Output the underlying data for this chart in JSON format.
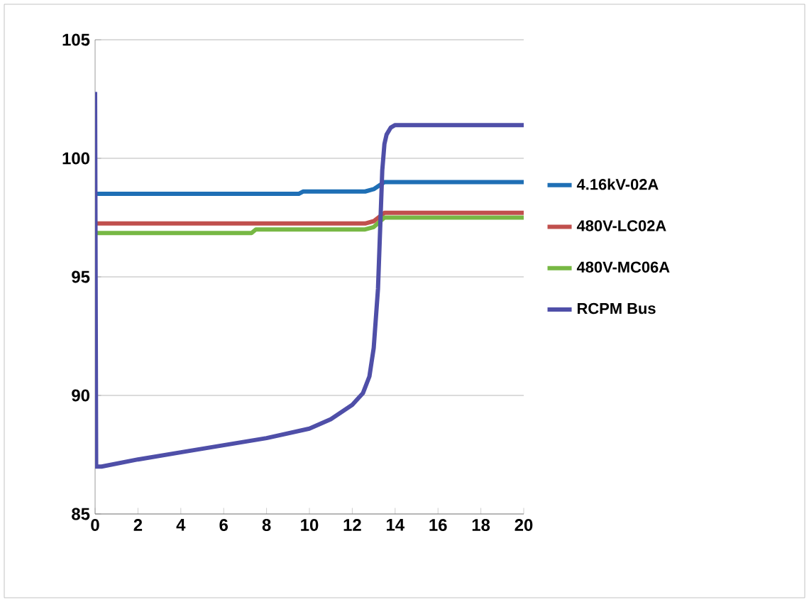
{
  "chart_data": {
    "type": "line",
    "xlim": [
      0,
      20
    ],
    "ylim": [
      85,
      105
    ],
    "xticks": [
      0,
      2,
      4,
      6,
      8,
      10,
      12,
      14,
      16,
      18,
      20
    ],
    "yticks": [
      85,
      90,
      95,
      100,
      105
    ],
    "grid": "y",
    "legend": "right",
    "marker": "none",
    "line_style": "solid",
    "series": [
      {
        "name": "4.16kV-02A",
        "color": "#1f6fb5",
        "x": [
          0,
          9.5,
          9.7,
          12.6,
          13.0,
          13.5,
          20
        ],
        "values": [
          98.5,
          98.5,
          98.6,
          98.6,
          98.7,
          99.0,
          99.0
        ]
      },
      {
        "name": "480V-LC02A",
        "color": "#c0504d",
        "x": [
          0,
          12.6,
          13.0,
          13.5,
          20
        ],
        "values": [
          97.25,
          97.25,
          97.35,
          97.7,
          97.7
        ]
      },
      {
        "name": "480V-MC06A",
        "color": "#77b844",
        "x": [
          0,
          7.3,
          7.5,
          12.6,
          13.0,
          13.5,
          20
        ],
        "values": [
          96.85,
          96.85,
          97.0,
          97.0,
          97.1,
          97.5,
          97.5
        ]
      },
      {
        "name": "RCPM Bus",
        "color": "#4f4fa8",
        "x": [
          0,
          0.05,
          0.3,
          2,
          4,
          6,
          8,
          10,
          11,
          12,
          12.5,
          12.8,
          13.0,
          13.2,
          13.3,
          13.4,
          13.5,
          13.6,
          13.8,
          14,
          20
        ],
        "values": [
          102.8,
          87.0,
          87.0,
          87.3,
          87.6,
          87.9,
          88.2,
          88.6,
          89.0,
          89.6,
          90.1,
          90.8,
          92.0,
          94.5,
          97.0,
          99.5,
          100.6,
          101.0,
          101.3,
          101.4,
          101.4
        ]
      }
    ]
  }
}
